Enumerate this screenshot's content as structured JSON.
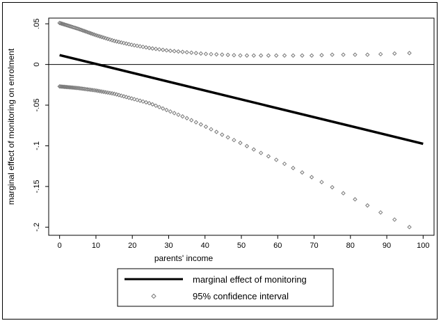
{
  "chart_data": {
    "type": "line",
    "xlabel": "parents' income",
    "ylabel": "marginal effect of monitoring on enrolment",
    "xlim": [
      -3,
      103
    ],
    "ylim": [
      -0.21,
      0.057
    ],
    "xticks": [
      0,
      10,
      20,
      30,
      40,
      50,
      60,
      70,
      80,
      90,
      100
    ],
    "xtick_labels": [
      "0",
      "10",
      "20",
      "30",
      "40",
      "50",
      "60",
      "70",
      "80",
      "90",
      "100"
    ],
    "yticks": [
      0.05,
      0,
      -0.05,
      -0.1,
      -0.15,
      -0.2
    ],
    "ytick_labels": [
      ".05",
      "0",
      "-.05",
      "-.1",
      "-.15",
      "-.2"
    ],
    "reference_line_y": 0,
    "grid": false,
    "legend_position": "bottom",
    "series": [
      {
        "name": "marginal effect of monitoring",
        "kind": "line",
        "color": "#000000",
        "x": [
          0,
          100
        ],
        "y": [
          0.0115,
          -0.0975
        ]
      },
      {
        "name": "95% confidence interval",
        "kind": "markers",
        "color": "#7a7a7a",
        "upper": {
          "x": [
            0,
            5,
            10,
            15,
            20,
            25,
            30,
            35,
            40,
            45,
            50,
            55,
            60,
            65,
            70,
            75,
            80,
            85,
            90,
            95,
            100
          ],
          "y": [
            0.051,
            0.044,
            0.036,
            0.029,
            0.024,
            0.02,
            0.017,
            0.015,
            0.013,
            0.012,
            0.011,
            0.011,
            0.011,
            0.011,
            0.011,
            0.012,
            0.012,
            0.012,
            0.013,
            0.014,
            0.014
          ]
        },
        "lower": {
          "x": [
            0,
            5,
            10,
            15,
            20,
            25,
            30,
            35,
            40,
            45,
            50,
            55,
            60,
            65,
            70,
            75,
            80,
            85,
            90,
            95,
            100
          ],
          "y": [
            -0.027,
            -0.029,
            -0.032,
            -0.036,
            -0.042,
            -0.048,
            -0.057,
            -0.066,
            -0.076,
            -0.087,
            -0.097,
            -0.108,
            -0.118,
            -0.129,
            -0.14,
            -0.151,
            -0.163,
            -0.174,
            -0.186,
            -0.197,
            -0.209
          ]
        }
      }
    ],
    "legend": [
      {
        "label": "marginal effect of monitoring"
      },
      {
        "label": "95% confidence interval"
      }
    ]
  }
}
